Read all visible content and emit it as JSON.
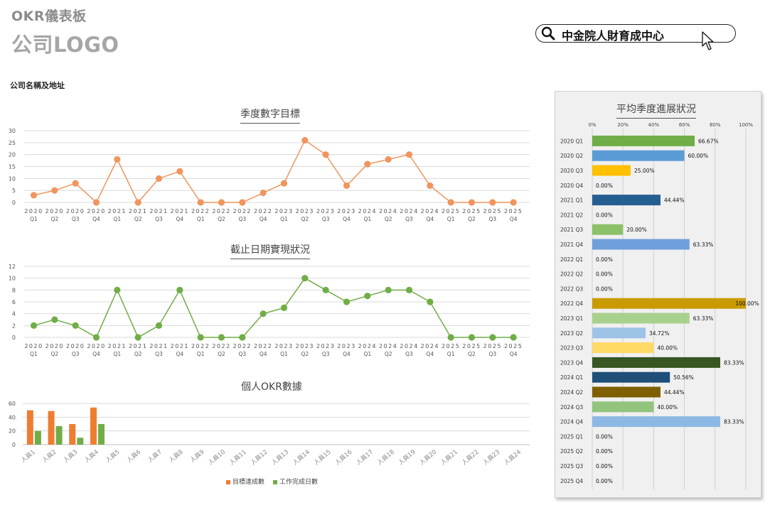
{
  "header": {
    "app_title": "OKR儀表板",
    "logo_text": "公司LOGO",
    "company_label": "公司名稱及地址"
  },
  "search": {
    "text": "中金院人財育成中心"
  },
  "colors": {
    "orange": "#f0955e",
    "orange_dark": "#ed7d31",
    "green": "#70ad47"
  },
  "chart_data": [
    {
      "type": "line",
      "title": "季度數字目標",
      "categories": [
        [
          "2020",
          "Q1"
        ],
        [
          "2020",
          "Q2"
        ],
        [
          "2020",
          "Q3"
        ],
        [
          "2020",
          "Q4"
        ],
        [
          "2021",
          "Q1"
        ],
        [
          "2021",
          "Q2"
        ],
        [
          "2021",
          "Q3"
        ],
        [
          "2021",
          "Q4"
        ],
        [
          "2022",
          "Q1"
        ],
        [
          "2022",
          "Q2"
        ],
        [
          "2022",
          "Q3"
        ],
        [
          "2022",
          "Q4"
        ],
        [
          "2023",
          "Q1"
        ],
        [
          "2023",
          "Q2"
        ],
        [
          "2023",
          "Q3"
        ],
        [
          "2023",
          "Q4"
        ],
        [
          "2024",
          "Q1"
        ],
        [
          "2024",
          "Q2"
        ],
        [
          "2024",
          "Q3"
        ],
        [
          "2024",
          "Q4"
        ],
        [
          "2025",
          "Q1"
        ],
        [
          "2025",
          "Q2"
        ],
        [
          "2025",
          "Q3"
        ],
        [
          "2025",
          "Q4"
        ]
      ],
      "values": [
        3,
        5,
        8,
        0,
        18,
        0,
        10,
        13,
        0,
        0,
        0,
        4,
        8,
        26,
        20,
        7,
        16,
        18,
        20,
        7,
        0,
        0,
        0,
        0
      ],
      "yticks": [
        0,
        5,
        10,
        15,
        20,
        25,
        30
      ],
      "ylim": [
        0,
        30
      ],
      "color": "#f0955e",
      "grid": true
    },
    {
      "type": "line",
      "title": "截止日期實現狀況",
      "categories": [
        [
          "2020",
          "Q1"
        ],
        [
          "2020",
          "Q2"
        ],
        [
          "2020",
          "Q3"
        ],
        [
          "2020",
          "Q4"
        ],
        [
          "2021",
          "Q1"
        ],
        [
          "2021",
          "Q2"
        ],
        [
          "2021",
          "Q3"
        ],
        [
          "2021",
          "Q4"
        ],
        [
          "2022",
          "Q1"
        ],
        [
          "2022",
          "Q2"
        ],
        [
          "2022",
          "Q3"
        ],
        [
          "2022",
          "Q4"
        ],
        [
          "2023",
          "Q1"
        ],
        [
          "2023",
          "Q2"
        ],
        [
          "2023",
          "Q3"
        ],
        [
          "2023",
          "Q4"
        ],
        [
          "2024",
          "Q1"
        ],
        [
          "2024",
          "Q2"
        ],
        [
          "2024",
          "Q3"
        ],
        [
          "2024",
          "Q4"
        ],
        [
          "2025",
          "Q1"
        ],
        [
          "2025",
          "Q2"
        ],
        [
          "2025",
          "Q3"
        ],
        [
          "2025",
          "Q4"
        ]
      ],
      "values": [
        2,
        3,
        2,
        0,
        8,
        0,
        2,
        8,
        0,
        0,
        0,
        4,
        5,
        10,
        8,
        6,
        7,
        8,
        8,
        6,
        0,
        0,
        0,
        0
      ],
      "yticks": [
        0,
        2,
        4,
        6,
        8,
        10,
        12
      ],
      "ylim": [
        0,
        12
      ],
      "color": "#70ad47",
      "grid": true
    },
    {
      "type": "bar",
      "title": "個人OKR數據",
      "categories": [
        "人員1",
        "人員2",
        "人員3",
        "人員4",
        "人員5",
        "人員6",
        "人員7",
        "人員8",
        "人員9",
        "人員10",
        "人員11",
        "人員12",
        "人員13",
        "人員14",
        "人員15",
        "人員16",
        "人員17",
        "人員18",
        "人員19",
        "人員20",
        "人員21",
        "人員22",
        "人員23",
        "人員24"
      ],
      "series": [
        {
          "name": "目標達成數",
          "color": "#ed7d31",
          "values": [
            50,
            49,
            30,
            54,
            0,
            0,
            0,
            0,
            0,
            0,
            0,
            0,
            0,
            0,
            0,
            0,
            0,
            0,
            0,
            0,
            0,
            0,
            0,
            0
          ]
        },
        {
          "name": "工作完成日數",
          "color": "#70ad47",
          "values": [
            20,
            27,
            10,
            30,
            0,
            0,
            0,
            0,
            0,
            0,
            0,
            0,
            0,
            0,
            0,
            0,
            0,
            0,
            0,
            0,
            0,
            0,
            0,
            0
          ]
        }
      ],
      "yticks": [
        0,
        20,
        40,
        60
      ],
      "ylim": [
        0,
        60
      ],
      "legend": "bottom",
      "grid": true
    },
    {
      "type": "bar",
      "orientation": "horizontal",
      "title": "平均季度進展狀況",
      "xticks": [
        "0%",
        "20%",
        "40%",
        "60%",
        "80%",
        "100%"
      ],
      "xlim": [
        0,
        100
      ],
      "categories": [
        "2020 Q1",
        "2020 Q2",
        "2020 Q3",
        "2020 Q4",
        "2021 Q1",
        "2021 Q2",
        "2021 Q3",
        "2021 Q4",
        "2022 Q1",
        "2022 Q2",
        "2022 Q3",
        "2022 Q4",
        "2023 Q1",
        "2023 Q2",
        "2023 Q3",
        "2023 Q4",
        "2024 Q1",
        "2024 Q2",
        "2024 Q3",
        "2024 Q4",
        "2025 Q1",
        "2025 Q2",
        "2025 Q3",
        "2025 Q4"
      ],
      "values": [
        66.67,
        60.0,
        25.0,
        0,
        44.44,
        0,
        20.0,
        63.33,
        0,
        0,
        0,
        100.0,
        63.33,
        34.72,
        40.0,
        83.33,
        50.56,
        44.44,
        40.0,
        83.33,
        0,
        0,
        0,
        0
      ],
      "labels": [
        "66.67%",
        "60.00%",
        "25.00%",
        "0.00%",
        "44.44%",
        "0.00%",
        "20.00%",
        "63.33%",
        "0.00%",
        "0.00%",
        "0.00%",
        "100.00%",
        "63.33%",
        "34.72%",
        "40.00%",
        "83.33%",
        "50.56%",
        "44.44%",
        "40.00%",
        "83.33%",
        "0.00%",
        "0.00%",
        "0.00%",
        "0.00%"
      ],
      "colors": [
        "#70ad47",
        "#5b9bd5",
        "#ffc000",
        "#a5a5a5",
        "#255e91",
        "#9e480e",
        "#8cc168",
        "#6fa0dc",
        "#a5a5a5",
        "#a5a5a5",
        "#a5a5a5",
        "#c99b00",
        "#a9d18e",
        "#9dc3e6",
        "#ffd966",
        "#375623",
        "#1f4e79",
        "#7f6000",
        "#93c47d",
        "#8db8e4",
        "#a5a5a5",
        "#a5a5a5",
        "#a5a5a5",
        "#a5a5a5"
      ]
    }
  ]
}
